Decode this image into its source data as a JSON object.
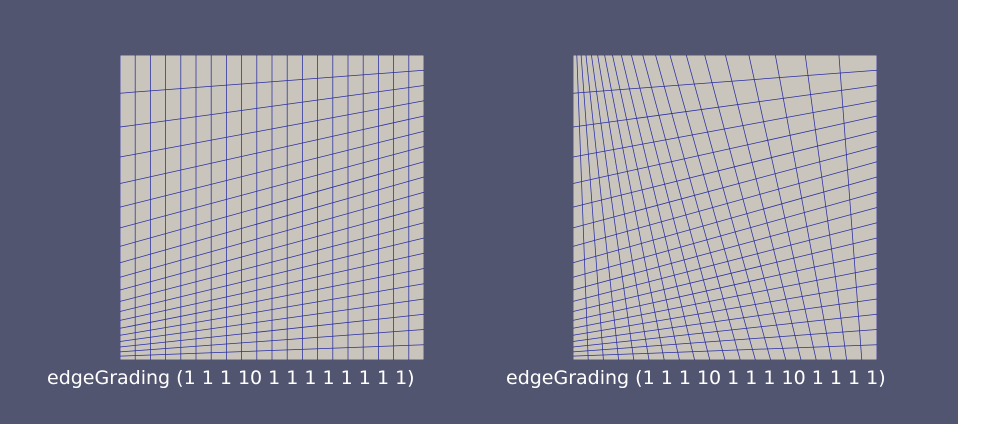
{
  "viewport": {
    "background_color": "#525570",
    "margin_color": "#ffffff"
  },
  "meshes": [
    {
      "caption": "edgeGrading (1 1 1 10 1 1 1 1 1 1 1 1)",
      "face_color": "#c9c5bd",
      "line_color": "#2a2ea0",
      "divisions": [
        20,
        20
      ],
      "grading_x": [
        1,
        1
      ],
      "grading_y": [
        10,
        1
      ]
    },
    {
      "caption": "edgeGrading (1 1 1 10 1 1 1 10 1 1 1 1)",
      "face_color": "#c9c5bd",
      "line_color": "#2a2ea0",
      "divisions": [
        20,
        20
      ],
      "grading_x": [
        1,
        10
      ],
      "grading_y": [
        10,
        1
      ]
    }
  ]
}
